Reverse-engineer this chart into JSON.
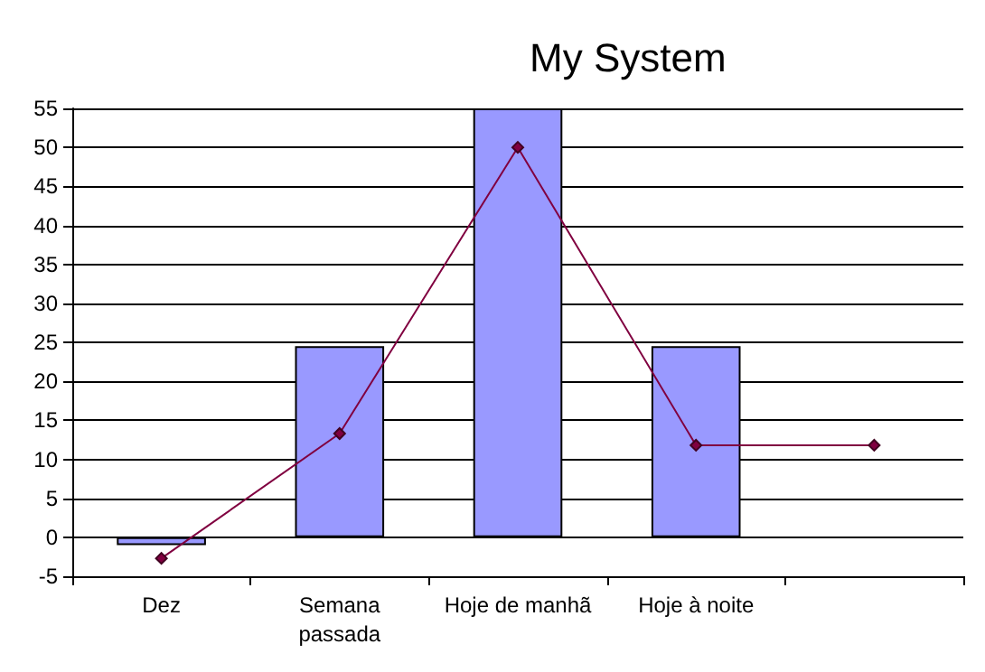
{
  "chart_data": {
    "type": "bar",
    "title": "My System",
    "categories": [
      "Dez",
      "Semana\npassada",
      "Hoje de manhã",
      "Hoje à noite",
      null
    ],
    "series": [
      {
        "color": "#9999ff",
        "values": [
          -1,
          24.5,
          55,
          24.5,
          null
        ]
      },
      {
        "type": "line",
        "color": "#800040",
        "marker": "diamond",
        "values": [
          -2.7,
          13.3,
          50,
          11.8,
          11.8
        ]
      }
    ],
    "ylim": [
      -5,
      55
    ],
    "yticks": [
      -5,
      0,
      5,
      10,
      15,
      20,
      25,
      30,
      35,
      40,
      45,
      50,
      55
    ],
    "grid": "y"
  }
}
